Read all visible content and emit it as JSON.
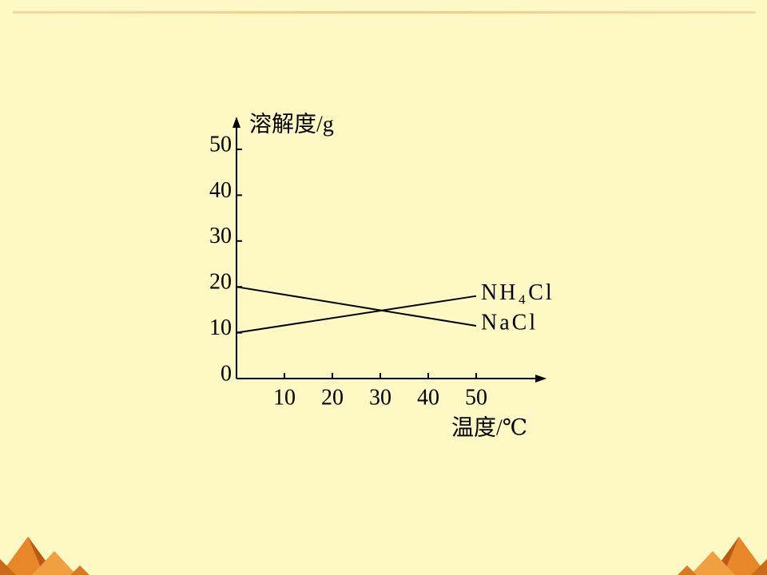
{
  "chart_data": {
    "type": "line",
    "x_label": "温度/℃",
    "y_label": "溶解度/g",
    "x": [
      0,
      50
    ],
    "series": [
      {
        "name": "NH₄Cl",
        "color": "#000000",
        "values": [
          10,
          18
        ]
      },
      {
        "name": "NaCl",
        "color": "#000000",
        "values": [
          20,
          11.5
        ]
      }
    ],
    "xlim": [
      0,
      64
    ],
    "ylim": [
      0,
      56
    ],
    "xticks": [
      10,
      20,
      30,
      40,
      50
    ],
    "yticks": [
      0,
      10,
      20,
      30,
      40,
      50
    ]
  }
}
